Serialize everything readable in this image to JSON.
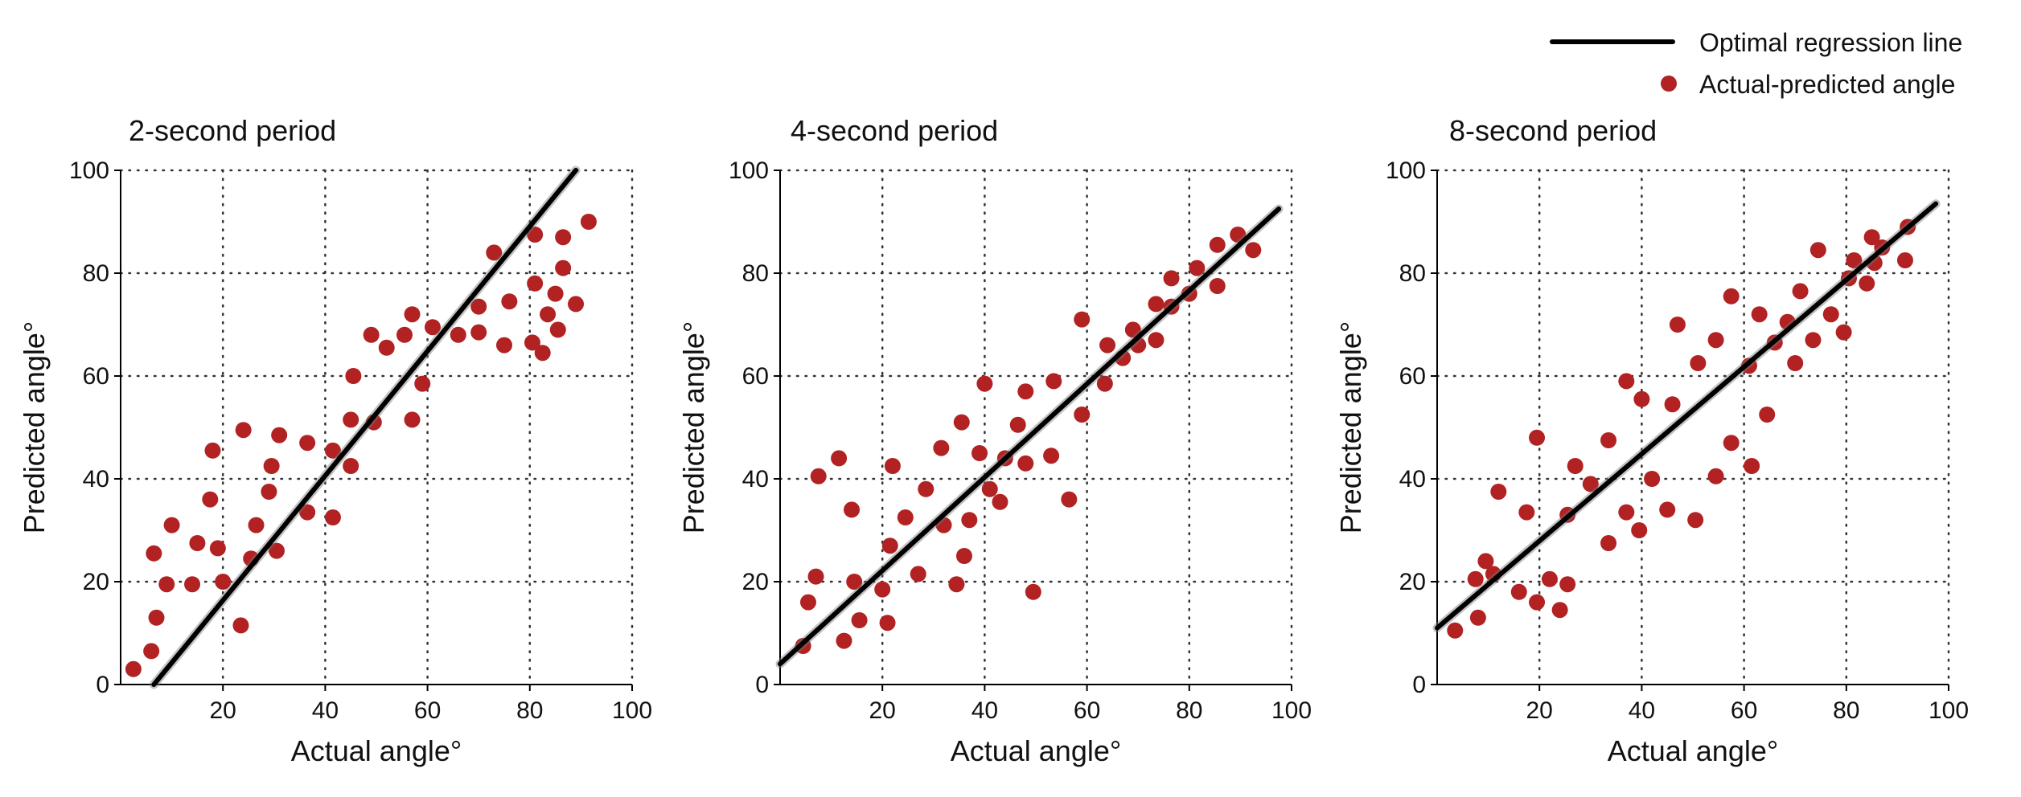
{
  "legend": {
    "placement": "top-right",
    "line_label": "Optimal regression line",
    "dot_label": "Actual-predicted angle",
    "line_color": "#000000",
    "dot_color": "#b22222"
  },
  "chart_data": [
    {
      "type": "scatter",
      "title": "2-second period",
      "xlabel": "Actual angle°",
      "ylabel": "Predicted angle°",
      "xlim": [
        0,
        100
      ],
      "ylim": [
        0,
        100
      ],
      "xticks": [
        20,
        40,
        60,
        80,
        100
      ],
      "yticks": [
        0,
        20,
        40,
        60,
        80,
        100
      ],
      "grid": true,
      "regression_line": {
        "name": "Optimal regression line",
        "x": [
          6.5,
          89
        ],
        "y": [
          0,
          100
        ]
      },
      "points": [
        [
          2.5,
          3
        ],
        [
          6,
          6.5
        ],
        [
          6.5,
          25.5
        ],
        [
          7,
          13
        ],
        [
          9,
          19.5
        ],
        [
          10,
          31
        ],
        [
          14,
          19.5
        ],
        [
          15,
          27.5
        ],
        [
          17.5,
          36
        ],
        [
          18,
          45.5
        ],
        [
          19,
          26.5
        ],
        [
          20,
          20
        ],
        [
          23.5,
          11.5
        ],
        [
          24,
          49.5
        ],
        [
          25.5,
          24.5
        ],
        [
          26.5,
          31
        ],
        [
          29,
          37.5
        ],
        [
          29.5,
          42.5
        ],
        [
          30.5,
          26
        ],
        [
          31,
          48.5
        ],
        [
          36.5,
          47
        ],
        [
          36.5,
          33.5
        ],
        [
          41.5,
          45.5
        ],
        [
          41.5,
          32.5
        ],
        [
          45,
          51.5
        ],
        [
          45,
          42.5
        ],
        [
          45.5,
          60
        ],
        [
          49,
          68
        ],
        [
          49.5,
          51
        ],
        [
          52,
          65.5
        ],
        [
          55.5,
          68
        ],
        [
          57,
          72
        ],
        [
          57,
          51.5
        ],
        [
          59,
          58.5
        ],
        [
          61,
          69.5
        ],
        [
          66,
          68
        ],
        [
          70,
          73.5
        ],
        [
          70,
          68.5
        ],
        [
          73,
          84
        ],
        [
          75,
          66
        ],
        [
          76,
          74.5
        ],
        [
          80.5,
          66.5
        ],
        [
          81,
          78
        ],
        [
          81,
          87.5
        ],
        [
          82.5,
          64.5
        ],
        [
          83.5,
          72
        ],
        [
          85,
          76
        ],
        [
          85.5,
          69
        ],
        [
          86.5,
          81
        ],
        [
          86.5,
          87
        ],
        [
          89,
          74
        ],
        [
          91.5,
          90
        ]
      ]
    },
    {
      "type": "scatter",
      "title": "4-second period",
      "xlabel": "Actual angle°",
      "ylabel": "Predicted angle°",
      "xlim": [
        0,
        100
      ],
      "ylim": [
        0,
        100
      ],
      "xticks": [
        20,
        40,
        60,
        80,
        100
      ],
      "yticks": [
        0,
        20,
        40,
        60,
        80,
        100
      ],
      "grid": true,
      "regression_line": {
        "name": "Optimal regression line",
        "x": [
          0,
          97.5
        ],
        "y": [
          4,
          92.5
        ]
      },
      "points": [
        [
          4.5,
          7.5
        ],
        [
          5.5,
          16
        ],
        [
          7,
          21
        ],
        [
          7.5,
          40.5
        ],
        [
          11.5,
          44
        ],
        [
          12.5,
          8.5
        ],
        [
          14,
          34
        ],
        [
          14.5,
          20
        ],
        [
          15.5,
          12.5
        ],
        [
          20,
          18.5
        ],
        [
          21,
          12
        ],
        [
          21.5,
          27
        ],
        [
          22,
          42.5
        ],
        [
          24.5,
          32.5
        ],
        [
          27,
          21.5
        ],
        [
          28.5,
          38
        ],
        [
          31.5,
          46
        ],
        [
          32,
          31
        ],
        [
          34.5,
          19.5
        ],
        [
          35.5,
          51
        ],
        [
          36,
          25
        ],
        [
          37,
          32
        ],
        [
          39,
          45
        ],
        [
          40,
          58.5
        ],
        [
          41,
          38
        ],
        [
          43,
          35.5
        ],
        [
          44,
          44
        ],
        [
          46.5,
          50.5
        ],
        [
          48,
          57
        ],
        [
          48,
          43
        ],
        [
          49.5,
          18
        ],
        [
          53,
          44.5
        ],
        [
          53.5,
          59
        ],
        [
          56.5,
          36
        ],
        [
          59,
          71
        ],
        [
          59,
          52.5
        ],
        [
          63.5,
          58.5
        ],
        [
          64,
          66
        ],
        [
          67,
          63.5
        ],
        [
          69,
          69
        ],
        [
          70,
          66
        ],
        [
          73.5,
          67
        ],
        [
          73.5,
          74
        ],
        [
          76.5,
          79
        ],
        [
          76.5,
          73.5
        ],
        [
          80,
          76
        ],
        [
          81.5,
          81
        ],
        [
          85.5,
          85.5
        ],
        [
          85.5,
          77.5
        ],
        [
          89.5,
          87.5
        ],
        [
          92.5,
          84.5
        ]
      ]
    },
    {
      "type": "scatter",
      "title": "8-second period",
      "xlabel": "Actual angle°",
      "ylabel": "Predicted angle°",
      "xlim": [
        0,
        100
      ],
      "ylim": [
        0,
        100
      ],
      "xticks": [
        20,
        40,
        60,
        80,
        100
      ],
      "yticks": [
        0,
        20,
        40,
        60,
        80,
        100
      ],
      "grid": true,
      "regression_line": {
        "name": "Optimal regression line",
        "x": [
          0,
          97.5
        ],
        "y": [
          11,
          93.5
        ]
      },
      "points": [
        [
          3.5,
          10.5
        ],
        [
          7.5,
          20.5
        ],
        [
          8,
          13
        ],
        [
          9.5,
          24
        ],
        [
          11,
          21.5
        ],
        [
          12,
          37.5
        ],
        [
          16,
          18
        ],
        [
          17.5,
          33.5
        ],
        [
          19.5,
          16
        ],
        [
          19.5,
          48
        ],
        [
          22,
          20.5
        ],
        [
          24,
          14.5
        ],
        [
          25.5,
          19.5
        ],
        [
          25.5,
          33
        ],
        [
          27,
          42.5
        ],
        [
          30,
          39
        ],
        [
          33.5,
          27.5
        ],
        [
          33.5,
          47.5
        ],
        [
          37,
          59
        ],
        [
          37,
          33.5
        ],
        [
          39.5,
          30
        ],
        [
          40,
          55.5
        ],
        [
          42,
          40
        ],
        [
          45,
          34
        ],
        [
          46,
          54.5
        ],
        [
          47,
          70
        ],
        [
          50.5,
          32
        ],
        [
          51,
          62.5
        ],
        [
          54.5,
          67
        ],
        [
          54.5,
          40.5
        ],
        [
          57.5,
          75.5
        ],
        [
          57.5,
          47
        ],
        [
          61,
          62
        ],
        [
          61.5,
          42.5
        ],
        [
          63,
          72
        ],
        [
          64.5,
          52.5
        ],
        [
          66,
          66.5
        ],
        [
          68.5,
          70.5
        ],
        [
          70,
          62.5
        ],
        [
          71,
          76.5
        ],
        [
          73.5,
          67
        ],
        [
          74.5,
          84.5
        ],
        [
          77,
          72
        ],
        [
          79.5,
          68.5
        ],
        [
          80.5,
          79
        ],
        [
          81.5,
          82.5
        ],
        [
          84,
          78
        ],
        [
          85,
          87
        ],
        [
          85.5,
          82
        ],
        [
          87,
          85
        ],
        [
          91.5,
          82.5
        ],
        [
          92,
          89
        ]
      ]
    }
  ]
}
